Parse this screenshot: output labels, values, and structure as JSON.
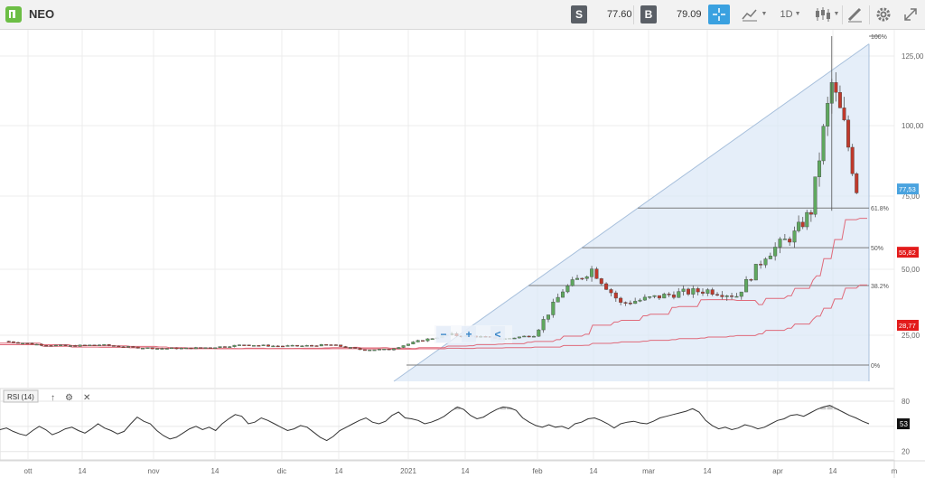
{
  "header": {
    "symbol": "NEO",
    "sell_label": "S",
    "sell_price": "77.60",
    "buy_label": "B",
    "buy_price": "79.09",
    "timeframe": "1D"
  },
  "colors": {
    "up_candle": "#5fa85f",
    "down_candle": "#c0392b",
    "ma_line": "#e06a7a",
    "fib_fill": "#dce8f7",
    "current_price_tag": "#4aa3df",
    "ma_tag": "#e31b1b"
  },
  "chart_data": [
    {
      "type": "candlestick",
      "title": "NEO",
      "x_ticks": [
        "ott",
        "14",
        "nov",
        "14",
        "dic",
        "14",
        "2021",
        "14",
        "feb",
        "14",
        "mar",
        "14",
        "apr",
        "14",
        "m"
      ],
      "y_ticks": [
        "25,00",
        "50,00",
        "75,00",
        "100,00",
        "125,00"
      ],
      "ylim": [
        0,
        135
      ],
      "grid": true,
      "current_price": "77,53",
      "ma_labels": [
        "55,82",
        "28,77"
      ],
      "fibonacci": {
        "levels": [
          "0%",
          "38.2%",
          "50%",
          "61.8%",
          "100%"
        ],
        "values": [
          0,
          38.2,
          50,
          61.8,
          100
        ]
      },
      "toolbar_glyphs": [
        "−",
        "+",
        "<"
      ],
      "price_series": [
        {
          "date": "2020-09-29",
          "close": 20
        },
        {
          "date": "2020-10-08",
          "close": 17
        },
        {
          "date": "2020-10-15",
          "close": 16
        },
        {
          "date": "2020-10-22",
          "close": 17
        },
        {
          "date": "2020-10-29",
          "close": 15
        },
        {
          "date": "2020-11-05",
          "close": 14
        },
        {
          "date": "2020-11-12",
          "close": 14
        },
        {
          "date": "2020-11-19",
          "close": 15
        },
        {
          "date": "2020-11-26",
          "close": 17
        },
        {
          "date": "2020-12-03",
          "close": 16
        },
        {
          "date": "2020-12-10",
          "close": 16
        },
        {
          "date": "2020-12-17",
          "close": 17
        },
        {
          "date": "2020-12-24",
          "close": 13
        },
        {
          "date": "2020-12-31",
          "close": 13
        },
        {
          "date": "2021-01-07",
          "close": 20
        },
        {
          "date": "2021-01-14",
          "close": 25
        },
        {
          "date": "2021-01-21",
          "close": 24
        },
        {
          "date": "2021-01-28",
          "close": 22
        },
        {
          "date": "2021-02-04",
          "close": 25
        },
        {
          "date": "2021-02-11",
          "close": 42
        },
        {
          "date": "2021-02-18",
          "close": 50
        },
        {
          "date": "2021-02-25",
          "close": 37
        },
        {
          "date": "2021-03-04",
          "close": 39
        },
        {
          "date": "2021-03-11",
          "close": 41
        },
        {
          "date": "2021-03-18",
          "close": 42
        },
        {
          "date": "2021-03-25",
          "close": 40
        },
        {
          "date": "2021-04-01",
          "close": 55
        },
        {
          "date": "2021-04-08",
          "close": 62
        },
        {
          "date": "2021-04-12",
          "close": 70
        },
        {
          "date": "2021-04-15",
          "close": 98
        },
        {
          "date": "2021-04-17",
          "close": 115
        },
        {
          "date": "2021-04-20",
          "close": 100
        },
        {
          "date": "2021-04-23",
          "close": 77.53
        }
      ]
    },
    {
      "type": "line",
      "title": "RSI (14)",
      "y_ticks": [
        "20",
        "50",
        "80"
      ],
      "ylim": [
        10,
        95
      ],
      "current_value": "53",
      "values": [
        46,
        48,
        44,
        41,
        39,
        45,
        50,
        46,
        40,
        43,
        47,
        49,
        45,
        42,
        47,
        53,
        48,
        45,
        41,
        44,
        53,
        61,
        56,
        53,
        45,
        39,
        35,
        37,
        42,
        47,
        50,
        46,
        49,
        45,
        53,
        59,
        64,
        62,
        53,
        55,
        60,
        57,
        53,
        49,
        45,
        47,
        51,
        49,
        43,
        37,
        33,
        38,
        45,
        49,
        53,
        57,
        60,
        55,
        53,
        56,
        63,
        67,
        60,
        59,
        57,
        53,
        55,
        58,
        62,
        68,
        73,
        70,
        63,
        59,
        61,
        66,
        70,
        73,
        72,
        69,
        60,
        55,
        51,
        49,
        52,
        49,
        50,
        47,
        53,
        55,
        59,
        60,
        57,
        53,
        48,
        53,
        55,
        56,
        54,
        53,
        56,
        60,
        62,
        64,
        66,
        68,
        71,
        67,
        57,
        51,
        47,
        49,
        46,
        48,
        52,
        50,
        47,
        49,
        53,
        57,
        59,
        63,
        64,
        62,
        66,
        70,
        73,
        75,
        71,
        67,
        63,
        60,
        56,
        53
      ]
    }
  ]
}
